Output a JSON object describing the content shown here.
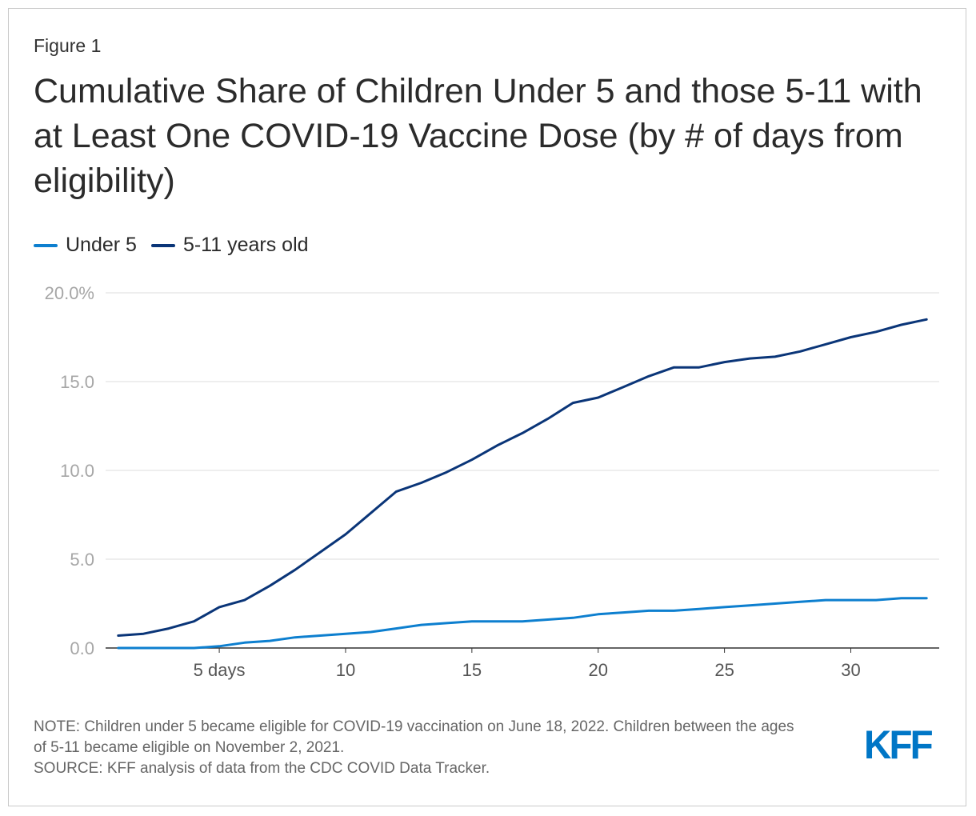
{
  "figure_label": "Figure 1",
  "title": "Cumulative Share of Children Under 5 and those 5-11 with at Least One COVID-19 Vaccine Dose (by # of days from eligibility)",
  "legend": [
    {
      "label": "Under 5",
      "color": "#0d7fcf"
    },
    {
      "label": "5-11 years old",
      "color": "#0a3578"
    }
  ],
  "note_lines": [
    "NOTE: Children under 5 became eligible for COVID-19 vaccination on June 18, 2022. Children between the ages of 5-11 became eligible on November 2, 2021.",
    "SOURCE: KFF analysis of data from the CDC COVID Data Tracker."
  ],
  "logo_text": "KFF",
  "chart_data": {
    "type": "line",
    "title": "Cumulative Share of Children Under 5 and those 5-11 with at Least One COVID-19 Vaccine Dose (by # of days from eligibility)",
    "xlabel": "",
    "ylabel": "",
    "xlim": [
      1,
      33
    ],
    "ylim": [
      0,
      20
    ],
    "x": [
      1,
      2,
      3,
      4,
      5,
      6,
      7,
      8,
      9,
      10,
      11,
      12,
      13,
      14,
      15,
      16,
      17,
      18,
      19,
      20,
      21,
      22,
      23,
      24,
      25,
      26,
      27,
      28,
      29,
      30,
      31,
      32,
      33
    ],
    "y_ticks": [
      {
        "value": 0,
        "label": "0.0"
      },
      {
        "value": 5,
        "label": "5.0"
      },
      {
        "value": 10,
        "label": "10.0"
      },
      {
        "value": 15,
        "label": "15.0"
      },
      {
        "value": 20,
        "label": "20.0%"
      }
    ],
    "x_ticks": [
      {
        "value": 5,
        "label": "5 days"
      },
      {
        "value": 10,
        "label": "10"
      },
      {
        "value": 15,
        "label": "15"
      },
      {
        "value": 20,
        "label": "20"
      },
      {
        "value": 25,
        "label": "25"
      },
      {
        "value": 30,
        "label": "30"
      }
    ],
    "series": [
      {
        "name": "Under 5",
        "color": "#0d7fcf",
        "values": [
          0,
          0,
          0,
          0,
          0.1,
          0.3,
          0.4,
          0.6,
          0.7,
          0.8,
          0.9,
          1.1,
          1.3,
          1.4,
          1.5,
          1.5,
          1.5,
          1.6,
          1.7,
          1.9,
          2.0,
          2.1,
          2.1,
          2.2,
          2.3,
          2.4,
          2.5,
          2.6,
          2.7,
          2.7,
          2.7,
          2.8,
          2.8
        ]
      },
      {
        "name": "5-11 years old",
        "color": "#0a3578",
        "values": [
          0.7,
          0.8,
          1.1,
          1.5,
          2.3,
          2.7,
          3.5,
          4.4,
          5.4,
          6.4,
          7.6,
          8.8,
          9.3,
          9.9,
          10.6,
          11.4,
          12.1,
          12.9,
          13.8,
          14.1,
          14.7,
          15.3,
          15.8,
          15.8,
          16.1,
          16.3,
          16.4,
          16.7,
          17.1,
          17.5,
          17.8,
          18.2,
          18.5
        ]
      }
    ]
  }
}
